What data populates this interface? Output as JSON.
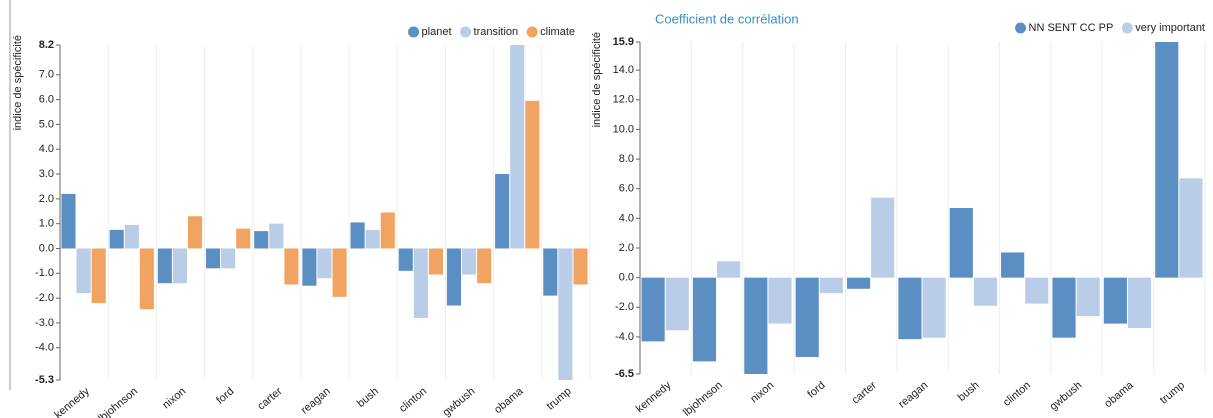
{
  "chart_data": [
    {
      "type": "bar",
      "y_label": "indice de spécificité",
      "categories": [
        "kennedy",
        "lbjohnson",
        "nixon",
        "ford",
        "carter",
        "reagan",
        "bush",
        "clinton",
        "gwbush",
        "obama",
        "trump"
      ],
      "series": [
        {
          "name": "planet",
          "color": "#5b8fc4",
          "values": [
            2.2,
            0.75,
            -1.4,
            -0.8,
            0.7,
            -1.5,
            1.05,
            -0.9,
            -2.3,
            3.0,
            -1.9
          ]
        },
        {
          "name": "transition",
          "color": "#b9cce8",
          "values": [
            -1.8,
            0.95,
            -1.4,
            -0.8,
            1.0,
            -1.2,
            0.75,
            -2.8,
            -1.05,
            8.2,
            -5.3
          ]
        },
        {
          "name": "climate",
          "color": "#f1a462",
          "values": [
            -2.2,
            -2.45,
            1.3,
            0.8,
            -1.45,
            -1.95,
            1.45,
            -1.05,
            -1.4,
            5.95,
            -1.45
          ]
        }
      ],
      "ylim": [
        -5.3,
        8.2
      ],
      "yticks": [
        -5.3,
        {
          "value": -4,
          "label": "-4.0"
        },
        {
          "value": -3,
          "label": "-3.0"
        },
        {
          "value": -2,
          "label": "-2.0"
        },
        {
          "value": -1,
          "label": "-1.0"
        },
        {
          "value": 0,
          "label": "0.0"
        },
        {
          "value": 1,
          "label": "1.0"
        },
        {
          "value": 2,
          "label": "2.0"
        },
        {
          "value": 3,
          "label": "3.0"
        },
        {
          "value": 4,
          "label": "4.0"
        },
        {
          "value": 5,
          "label": "5.0"
        },
        {
          "value": 6,
          "label": "6.0"
        },
        {
          "value": 7,
          "label": "7.0"
        },
        8.2
      ],
      "legend": "top-right"
    },
    {
      "type": "bar",
      "title": "Coefficient de corrélation",
      "y_label": "indice de spécificité",
      "categories": [
        "kennedy",
        "lbjohnson",
        "nixon",
        "ford",
        "carter",
        "reagan",
        "bush",
        "clinton",
        "gwbush",
        "obama",
        "trump"
      ],
      "series": [
        {
          "name": "NN SENT CC PP",
          "color": "#5b8fc4",
          "values": [
            -4.3,
            -5.65,
            -6.5,
            -5.35,
            -0.75,
            -4.15,
            4.7,
            1.7,
            -4.05,
            -3.1,
            15.9
          ]
        },
        {
          "name": "very important",
          "color": "#b9cce8",
          "values": [
            -3.55,
            1.1,
            -3.1,
            -1.05,
            5.4,
            -4.05,
            -1.9,
            -1.75,
            -2.6,
            -3.4,
            6.7
          ]
        }
      ],
      "ylim": [
        -6.5,
        15.9
      ],
      "yticks": [
        -6.5,
        {
          "value": -4,
          "label": "-4.0"
        },
        {
          "value": -2,
          "label": "-2.0"
        },
        {
          "value": 0,
          "label": "0.0"
        },
        {
          "value": 2,
          "label": "2.0"
        },
        {
          "value": 4,
          "label": "4.0"
        },
        {
          "value": 6,
          "label": "6.0"
        },
        {
          "value": 8,
          "label": "8.0"
        },
        {
          "value": 10,
          "label": "10.0"
        },
        {
          "value": 12,
          "label": "12.0"
        },
        {
          "value": 14,
          "label": "14.0"
        },
        15.9
      ],
      "legend": "top-right"
    }
  ]
}
